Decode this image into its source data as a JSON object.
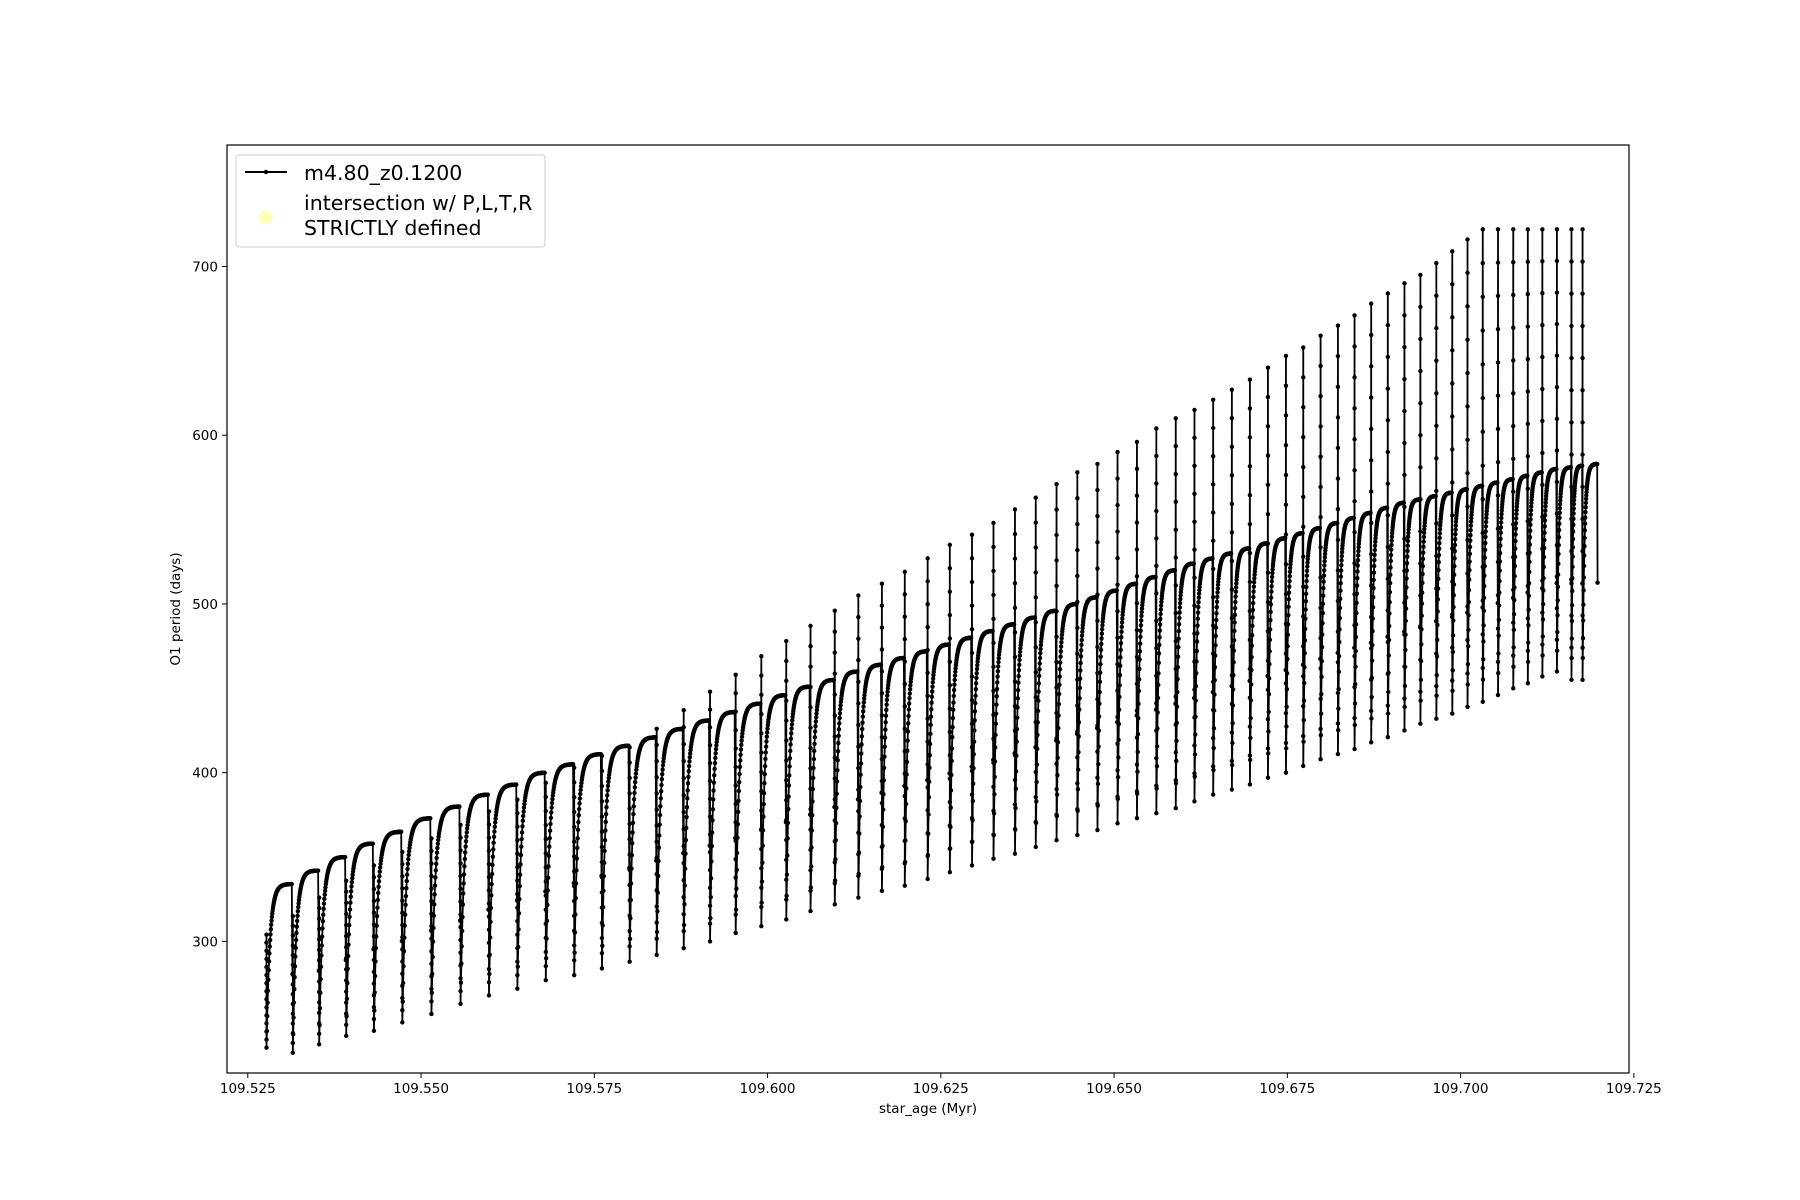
{
  "chart_data": {
    "type": "line",
    "xlabel": "star_age (Myr)",
    "ylabel": "O1 period (days)",
    "xlim": [
      109.522,
      109.7243
    ],
    "ylim": [
      222,
      772
    ],
    "x_ticks": [
      "109.525",
      "109.550",
      "109.575",
      "109.600",
      "109.625",
      "109.650",
      "109.675",
      "109.700",
      "109.725"
    ],
    "x_tick_values": [
      109.525,
      109.55,
      109.575,
      109.6,
      109.625,
      109.65,
      109.675,
      109.7,
      109.725
    ],
    "y_ticks": [
      "300",
      "400",
      "500",
      "600",
      "700"
    ],
    "y_tick_values": [
      300,
      400,
      500,
      600,
      700
    ],
    "grid": false,
    "legend_position": "top-left",
    "series": [
      {
        "name": "m4.80_z0.1200",
        "color": "#000000",
        "marker": "dot",
        "cycles": {
          "start_age": [
            109.5277,
            109.5315,
            109.5353,
            109.5392,
            109.5432,
            109.5473,
            109.5515,
            109.5557,
            109.5598,
            109.5639,
            109.568,
            109.5721,
            109.5761,
            109.5801,
            109.584,
            109.5879,
            109.5917,
            109.5954,
            109.5991,
            109.6027,
            109.6062,
            109.6097,
            109.6131,
            109.6165,
            109.6198,
            109.6231,
            109.6263,
            109.6295,
            109.6326,
            109.6357,
            109.6387,
            109.6417,
            109.6447,
            109.6476,
            109.6505,
            109.6533,
            109.6561,
            109.6589,
            109.6616,
            109.6643,
            109.667,
            109.6696,
            109.6722,
            109.6748,
            109.6773,
            109.6798,
            109.6823,
            109.6847,
            109.6871,
            109.6895,
            109.6919,
            109.6942,
            109.6965,
            109.6988,
            109.701,
            109.7032,
            109.7054,
            109.7076,
            109.7097,
            109.7118,
            109.7139,
            109.716,
            109.7176
          ],
          "spike_top": [
            304,
            315,
            326,
            336,
            345,
            353,
            361,
            369,
            377,
            384,
            394,
            403,
            410,
            415,
            426,
            437,
            448,
            458,
            469,
            478,
            487,
            496,
            505,
            512,
            519,
            527,
            535,
            541,
            548,
            556,
            563,
            571,
            578,
            583,
            590,
            596,
            604,
            610,
            615,
            621,
            627,
            633,
            640,
            647,
            652,
            659,
            665,
            671,
            678,
            684,
            690,
            695,
            702,
            709,
            716,
            722,
            722,
            722,
            722,
            722,
            722,
            722,
            722
          ],
          "trough": [
            237,
            234,
            239,
            244,
            247,
            252,
            257,
            263,
            268,
            272,
            277,
            280,
            284,
            288,
            292,
            296,
            300,
            305,
            309,
            313,
            318,
            322,
            326,
            330,
            333,
            337,
            341,
            345,
            349,
            352,
            356,
            360,
            363,
            366,
            370,
            373,
            376,
            379,
            383,
            387,
            390,
            393,
            397,
            400,
            404,
            408,
            411,
            414,
            418,
            421,
            425,
            429,
            432,
            435,
            439,
            442,
            446,
            450,
            453,
            457,
            460,
            455,
            455
          ],
          "plateau": [
            334,
            342,
            350,
            358,
            365,
            373,
            380,
            387,
            393,
            400,
            405,
            411,
            416,
            421,
            426,
            431,
            436,
            441,
            446,
            451,
            455,
            460,
            464,
            468,
            472,
            476,
            480,
            484,
            488,
            492,
            496,
            500,
            504,
            508,
            512,
            516,
            520,
            524,
            527,
            530,
            533,
            536,
            539,
            542,
            545,
            548,
            551,
            554,
            557,
            560,
            562,
            564,
            566,
            568,
            570,
            572,
            574,
            576,
            578,
            580,
            581,
            582,
            583
          ]
        }
      },
      {
        "name": "intersection w/ P,L,T,R STRICTLY defined",
        "color": "#ffffa0",
        "marker": "circle",
        "points": []
      }
    ]
  },
  "legend": {
    "entries": [
      {
        "label_lines": [
          "m4.80_z0.1200"
        ]
      },
      {
        "label_lines": [
          "intersection w/ P,L,T,R",
          "STRICTLY defined"
        ]
      }
    ]
  }
}
